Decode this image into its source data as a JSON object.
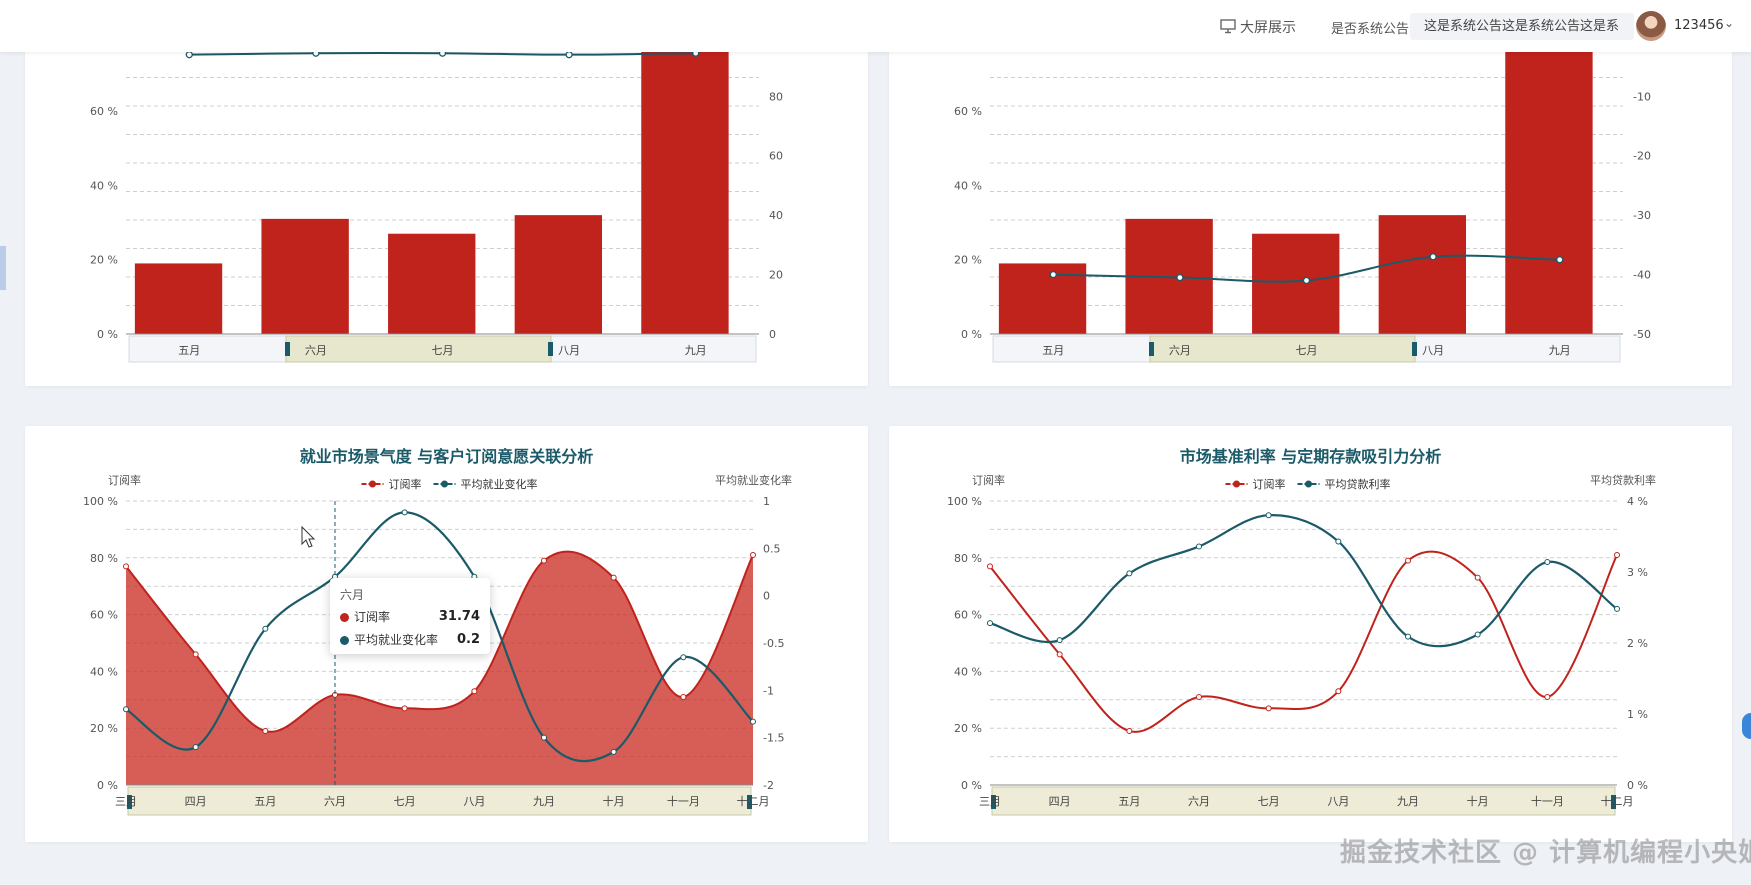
{
  "header": {
    "bigscreen_label": "大屏展示",
    "notice_label": "是否系统公告",
    "notice_text": "这是系统公告这是系统公告这是系",
    "username": "123456"
  },
  "colors": {
    "bar": "#c0221c",
    "line": "#1b5a68",
    "grid": "#cfcfcf"
  },
  "tooltip": {
    "title": "六月",
    "row1_label": "订阅率",
    "row1_value": "31.74",
    "row2_label": "平均就业变化率",
    "row2_value": "0.2"
  },
  "watermark": "掘金技术社区 @ 计算机编程小央姐",
  "chart_data": [
    {
      "type": "bar",
      "categories": [
        "五月",
        "六月",
        "七月",
        "八月",
        "九月"
      ],
      "series": [
        {
          "type": "bar",
          "axis": "left",
          "values": [
            19,
            31,
            27,
            32,
            80
          ]
        },
        {
          "type": "line",
          "axis": "right",
          "values": [
            94,
            94.5,
            94.5,
            94,
            94.5
          ]
        }
      ],
      "y_left_ticks": [
        "0 %",
        "20 %",
        "40 %",
        "60 %"
      ],
      "y_left_range": [
        0,
        77
      ],
      "y_right_ticks": [
        "0",
        "20",
        "40",
        "60",
        "80"
      ],
      "y_right_range": [
        0,
        96.25
      ],
      "x_ticks": [
        "五月",
        "六月",
        "七月",
        "八月",
        "九月"
      ]
    },
    {
      "type": "bar",
      "categories": [
        "五月",
        "六月",
        "七月",
        "八月",
        "九月"
      ],
      "series": [
        {
          "type": "bar",
          "axis": "left",
          "values": [
            19,
            31,
            27,
            32,
            80
          ]
        },
        {
          "type": "line",
          "axis": "right",
          "values": [
            -40,
            -40.5,
            -41,
            -37,
            -37.5
          ]
        }
      ],
      "y_left_ticks": [
        "0 %",
        "20 %",
        "40 %",
        "60 %"
      ],
      "y_left_range": [
        0,
        77
      ],
      "y_right_ticks": [
        "-10",
        "-20",
        "-30",
        "-40",
        "-50"
      ],
      "y_right_tick_values": [
        -10,
        -20,
        -30,
        -40,
        -50
      ],
      "y_right_range": [
        -50,
        -1.875
      ],
      "x_ticks": [
        "五月",
        "六月",
        "七月",
        "八月",
        "九月"
      ]
    },
    {
      "type": "area",
      "title": "就业市场景气度 与客户订阅意愿关联分析",
      "categories": [
        "三月",
        "四月",
        "五月",
        "六月",
        "七月",
        "八月",
        "九月",
        "十月",
        "十一月",
        "十二月"
      ],
      "series": [
        {
          "name": "订阅率",
          "type": "area",
          "axis": "left",
          "values": [
            77,
            46,
            19,
            31.74,
            27,
            33,
            79,
            73,
            31,
            81
          ]
        },
        {
          "name": "平均就业变化率",
          "type": "line",
          "axis": "right",
          "values": [
            -1.2,
            -1.6,
            -0.35,
            0.2,
            0.88,
            0.2,
            -1.5,
            -1.65,
            -0.65,
            -1.33
          ]
        }
      ],
      "ylabel_left": "订阅率",
      "ylabel_right": "平均就业变化率",
      "y_left_ticks": [
        "0 %",
        "20 %",
        "40 %",
        "60 %",
        "80 %",
        "100 %"
      ],
      "y_left_range": [
        0,
        100
      ],
      "y_right_ticks": [
        "1",
        "0.5",
        "0",
        "-0.5",
        "-1",
        "-1.5",
        "-2"
      ],
      "y_right_tick_values": [
        1,
        0.5,
        0,
        -0.5,
        -1,
        -1.5,
        -2
      ],
      "y_right_range": [
        -2,
        1
      ]
    },
    {
      "type": "line",
      "title": "市场基准利率 与定期存款吸引力分析",
      "categories": [
        "三月",
        "四月",
        "五月",
        "六月",
        "七月",
        "八月",
        "九月",
        "十月",
        "十一月",
        "十二月"
      ],
      "series": [
        {
          "name": "订阅率",
          "type": "line",
          "axis": "left",
          "values": [
            77,
            46,
            19,
            31,
            27,
            33,
            79,
            73,
            31,
            81
          ]
        },
        {
          "name": "平均贷款利率",
          "type": "line",
          "axis": "right",
          "values": [
            2.28,
            2.04,
            2.98,
            3.36,
            3.8,
            3.43,
            2.09,
            2.12,
            3.14,
            2.48
          ]
        }
      ],
      "ylabel_left": "订阅率",
      "ylabel_right": "平均贷款利率",
      "y_left_ticks": [
        "0 %",
        "20 %",
        "40 %",
        "60 %",
        "80 %",
        "100 %"
      ],
      "y_left_range": [
        0,
        100
      ],
      "y_right_ticks": [
        "4 %",
        "3 %",
        "2 %",
        "1 %",
        "0 %"
      ],
      "y_right_tick_values": [
        4,
        3,
        2,
        1,
        0
      ],
      "y_right_range": [
        0,
        4
      ]
    }
  ]
}
